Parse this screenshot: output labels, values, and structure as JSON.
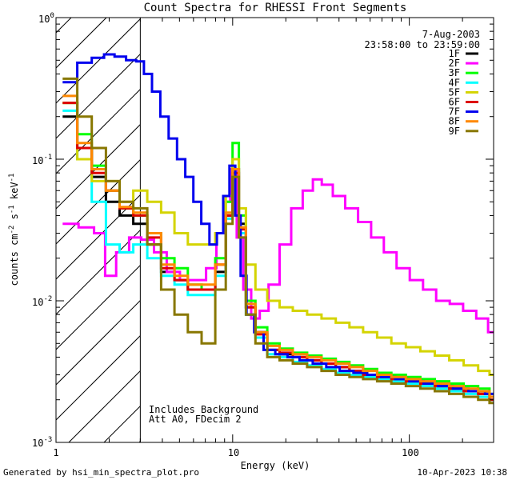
{
  "chart_data": {
    "type": "line",
    "title": "Count Spectra for RHESSI Front Segments",
    "xlabel": "Energy (keV)",
    "ylabel": "counts cm^-2 s^-1 keV^-1",
    "ylabel_parts": {
      "a": "counts cm",
      "b": "-2",
      "c": " s",
      "d": "-1",
      "e": " keV",
      "f": "-1"
    },
    "xscale": "log",
    "yscale": "log",
    "xlim": [
      1,
      300
    ],
    "ylim": [
      0.001,
      1
    ],
    "x_tick_labels": [
      {
        "value": 1,
        "label": "1"
      },
      {
        "value": 10,
        "label": "10"
      },
      {
        "value": 100,
        "label": "100"
      }
    ],
    "y_tick_labels": [
      {
        "value": 1,
        "mant": "10",
        "exp": "0"
      },
      {
        "value": 0.1,
        "mant": "10",
        "exp": "-1"
      },
      {
        "value": 0.01,
        "mant": "10",
        "exp": "-2"
      },
      {
        "value": 0.001,
        "mant": "10",
        "exp": "-3"
      }
    ],
    "date": "7-Aug-2003",
    "time_range": "23:58:00 to 23:59:00",
    "annotations": [
      "Includes Background",
      "Att A0, FDecim 2"
    ],
    "excluded_region_max_keV": 3,
    "series": [
      {
        "name": "1F",
        "color": "#000000",
        "x": [
          1.2,
          1.45,
          1.75,
          2.1,
          2.5,
          3.0,
          3.6,
          4.3,
          5.1,
          6.1,
          7.3,
          8.7,
          9.6,
          10.4,
          11.3,
          12.5,
          14.5,
          17,
          20,
          24,
          29,
          35,
          42,
          50,
          60,
          72,
          87,
          105,
          127,
          153,
          185,
          223,
          270,
          300
        ],
        "y": [
          0.2,
          0.12,
          0.075,
          0.05,
          0.04,
          0.035,
          0.025,
          0.016,
          0.014,
          0.012,
          0.012,
          0.016,
          0.04,
          0.085,
          0.035,
          0.009,
          0.006,
          0.0045,
          0.0042,
          0.004,
          0.0038,
          0.0036,
          0.0034,
          0.0032,
          0.003,
          0.0029,
          0.0028,
          0.0027,
          0.0026,
          0.0025,
          0.0024,
          0.0023,
          0.0022,
          0.002
        ]
      },
      {
        "name": "2F",
        "color": "#ff00ff",
        "x": [
          1.2,
          1.5,
          1.8,
          2.0,
          2.4,
          2.8,
          3.3,
          3.9,
          4.6,
          5.5,
          6.5,
          7.7,
          8.5,
          9.3,
          10.1,
          11,
          12,
          13.5,
          15,
          17,
          20,
          23,
          27,
          30,
          34,
          40,
          47,
          56,
          66,
          78,
          92,
          110,
          130,
          155,
          185,
          220,
          260,
          300
        ],
        "y": [
          0.035,
          0.033,
          0.03,
          0.015,
          0.022,
          0.028,
          0.027,
          0.022,
          0.016,
          0.014,
          0.014,
          0.017,
          0.03,
          0.05,
          0.085,
          0.028,
          0.012,
          0.0075,
          0.0085,
          0.013,
          0.025,
          0.045,
          0.06,
          0.072,
          0.066,
          0.055,
          0.045,
          0.036,
          0.028,
          0.022,
          0.017,
          0.014,
          0.012,
          0.01,
          0.0095,
          0.0085,
          0.0075,
          0.006
        ]
      },
      {
        "name": "3F",
        "color": "#00ff00",
        "x": [
          1.2,
          1.45,
          1.75,
          2.1,
          2.5,
          3.0,
          3.6,
          4.3,
          5.1,
          6.1,
          7.3,
          8.7,
          9.6,
          10.4,
          11.3,
          12.5,
          14.5,
          17,
          20,
          24,
          29,
          35,
          42,
          50,
          60,
          72,
          87,
          105,
          127,
          153,
          185,
          223,
          270,
          300
        ],
        "y": [
          0.25,
          0.15,
          0.09,
          0.06,
          0.045,
          0.04,
          0.03,
          0.02,
          0.017,
          0.013,
          0.012,
          0.02,
          0.05,
          0.13,
          0.04,
          0.01,
          0.0065,
          0.005,
          0.0046,
          0.0043,
          0.0041,
          0.0039,
          0.0037,
          0.0035,
          0.0033,
          0.0031,
          0.003,
          0.0029,
          0.0028,
          0.0027,
          0.0026,
          0.0025,
          0.0024,
          0.0022
        ]
      },
      {
        "name": "4F",
        "color": "#00ffff",
        "x": [
          1.2,
          1.45,
          1.75,
          2.1,
          2.5,
          3.0,
          3.6,
          4.3,
          5.1,
          6.1,
          7.3,
          8.7,
          9.6,
          10.4,
          11.3,
          12.5,
          14.5,
          17,
          20,
          24,
          29,
          35,
          42,
          50,
          60,
          72,
          87,
          105,
          127,
          153,
          185,
          223,
          270,
          300
        ],
        "y": [
          0.22,
          0.1,
          0.05,
          0.025,
          0.022,
          0.025,
          0.02,
          0.015,
          0.013,
          0.011,
          0.011,
          0.015,
          0.038,
          0.08,
          0.03,
          0.008,
          0.0055,
          0.0042,
          0.004,
          0.0037,
          0.0035,
          0.0033,
          0.0031,
          0.003,
          0.0029,
          0.0028,
          0.0027,
          0.0026,
          0.0025,
          0.0024,
          0.0023,
          0.0022,
          0.0021,
          0.002
        ]
      },
      {
        "name": "5F",
        "color": "#d4d400",
        "x": [
          1.2,
          1.45,
          1.75,
          2.1,
          2.5,
          3.0,
          3.6,
          4.3,
          5.1,
          6.1,
          7.3,
          8.7,
          9.6,
          10.4,
          11.3,
          12.5,
          14.5,
          17,
          20,
          24,
          29,
          35,
          42,
          50,
          60,
          72,
          87,
          105,
          127,
          153,
          185,
          223,
          270,
          300
        ],
        "y": [
          0.25,
          0.1,
          0.07,
          0.07,
          0.05,
          0.06,
          0.05,
          0.042,
          0.03,
          0.025,
          0.025,
          0.03,
          0.055,
          0.1,
          0.045,
          0.018,
          0.012,
          0.01,
          0.009,
          0.0085,
          0.008,
          0.0075,
          0.007,
          0.0065,
          0.006,
          0.0055,
          0.005,
          0.0047,
          0.0044,
          0.0041,
          0.0038,
          0.0035,
          0.0032,
          0.003
        ]
      },
      {
        "name": "6F",
        "color": "#dd0000",
        "x": [
          1.2,
          1.45,
          1.75,
          2.1,
          2.5,
          3.0,
          3.6,
          4.3,
          5.1,
          6.1,
          7.3,
          8.7,
          9.6,
          10.4,
          11.3,
          12.5,
          14.5,
          17,
          20,
          24,
          29,
          35,
          42,
          50,
          60,
          72,
          87,
          105,
          127,
          153,
          185,
          223,
          270,
          300
        ],
        "y": [
          0.25,
          0.12,
          0.08,
          0.06,
          0.045,
          0.04,
          0.028,
          0.017,
          0.014,
          0.012,
          0.012,
          0.018,
          0.04,
          0.08,
          0.032,
          0.009,
          0.0058,
          0.0045,
          0.0043,
          0.004,
          0.0038,
          0.0036,
          0.0034,
          0.0032,
          0.003,
          0.0029,
          0.0028,
          0.0027,
          0.0026,
          0.0025,
          0.0024,
          0.0023,
          0.0022,
          0.002
        ]
      },
      {
        "name": "7F",
        "color": "#0000ee",
        "x": [
          1.2,
          1.45,
          1.75,
          2.0,
          2.3,
          2.7,
          3.0,
          3.3,
          3.7,
          4.1,
          4.6,
          5.1,
          5.7,
          6.3,
          7.0,
          7.8,
          8.5,
          9.2,
          10.0,
          10.7,
          11.5,
          12.5,
          14,
          16,
          19,
          22,
          26,
          31,
          37,
          44,
          53,
          63,
          76,
          91,
          110,
          132,
          160,
          195,
          240,
          300
        ],
        "y": [
          0.35,
          0.48,
          0.52,
          0.55,
          0.53,
          0.5,
          0.49,
          0.4,
          0.3,
          0.2,
          0.14,
          0.1,
          0.075,
          0.05,
          0.035,
          0.025,
          0.03,
          0.055,
          0.09,
          0.04,
          0.015,
          0.008,
          0.006,
          0.0045,
          0.0042,
          0.004,
          0.0038,
          0.0036,
          0.0034,
          0.0032,
          0.0031,
          0.003,
          0.0029,
          0.0028,
          0.0027,
          0.0026,
          0.0025,
          0.0024,
          0.0023,
          0.0022
        ]
      },
      {
        "name": "8F",
        "color": "#ff8800",
        "x": [
          1.2,
          1.45,
          1.75,
          2.1,
          2.5,
          3.0,
          3.6,
          4.3,
          5.1,
          6.1,
          7.3,
          8.7,
          9.6,
          10.4,
          11.3,
          12.5,
          14.5,
          17,
          20,
          24,
          29,
          35,
          42,
          50,
          60,
          72,
          87,
          105,
          127,
          153,
          185,
          223,
          270,
          300
        ],
        "y": [
          0.28,
          0.13,
          0.085,
          0.06,
          0.046,
          0.042,
          0.03,
          0.018,
          0.015,
          0.013,
          0.013,
          0.018,
          0.042,
          0.085,
          0.033,
          0.0095,
          0.006,
          0.0048,
          0.0045,
          0.0042,
          0.004,
          0.0038,
          0.0036,
          0.0034,
          0.0032,
          0.003,
          0.0029,
          0.0028,
          0.0027,
          0.0026,
          0.0025,
          0.0024,
          0.0023,
          0.0021
        ]
      },
      {
        "name": "9F",
        "color": "#887700",
        "x": [
          1.2,
          1.45,
          1.75,
          2.1,
          2.5,
          3.0,
          3.6,
          4.3,
          5.1,
          6.1,
          7.3,
          8.7,
          9.6,
          10.4,
          11.3,
          12.5,
          14.5,
          17,
          20,
          24,
          29,
          35,
          42,
          50,
          60,
          72,
          87,
          105,
          127,
          153,
          185,
          223,
          270,
          300
        ],
        "y": [
          0.37,
          0.2,
          0.12,
          0.07,
          0.05,
          0.045,
          0.025,
          0.012,
          0.008,
          0.006,
          0.005,
          0.012,
          0.035,
          0.075,
          0.028,
          0.008,
          0.005,
          0.004,
          0.0038,
          0.0036,
          0.0034,
          0.0032,
          0.003,
          0.0029,
          0.0028,
          0.0027,
          0.0026,
          0.0025,
          0.0024,
          0.0023,
          0.0022,
          0.0021,
          0.002,
          0.0019
        ]
      }
    ]
  },
  "footer": {
    "generated_by": "Generated by hsi_min_spectra_plot.pro",
    "timestamp": "10-Apr-2023 10:38"
  }
}
